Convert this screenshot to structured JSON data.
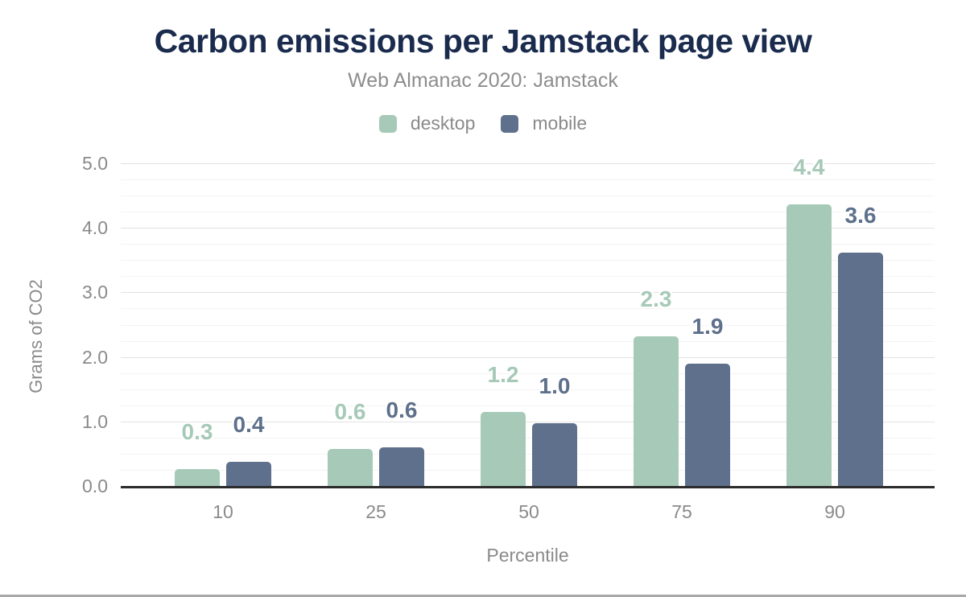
{
  "title": "Carbon emissions per Jamstack page view",
  "subtitle": "Web Almanac 2020: Jamstack",
  "chart_data": {
    "type": "bar",
    "categories": [
      "10",
      "25",
      "50",
      "75",
      "90"
    ],
    "series": [
      {
        "name": "desktop",
        "color": "#a6c9b8",
        "values": [
          0.26,
          0.57,
          1.15,
          2.32,
          4.37
        ],
        "labels": [
          "0.3",
          "0.6",
          "1.2",
          "2.3",
          "4.4"
        ]
      },
      {
        "name": "mobile",
        "color": "#5e708b",
        "values": [
          0.38,
          0.6,
          0.97,
          1.9,
          3.62
        ],
        "labels": [
          "0.4",
          "0.6",
          "1.0",
          "1.9",
          "3.6"
        ]
      }
    ],
    "title": "Carbon emissions per Jamstack page view",
    "subtitle": "Web Almanac 2020: Jamstack",
    "xlabel": "Percentile",
    "ylabel": "Grams of CO2",
    "ylim": [
      0,
      5
    ],
    "yticks": [
      0,
      1,
      2,
      3,
      4,
      5
    ],
    "ytick_labels": [
      "0.0",
      "1.0",
      "2.0",
      "3.0",
      "4.0",
      "5.0"
    ],
    "minor_grid_step": 0.25,
    "grid": true,
    "legend_position": "top",
    "data_labels_shown": true
  },
  "colors": {
    "title_text": "#1a2b4d",
    "subtitle_text": "#8d8d8d",
    "axis_text": "#8a8a8a",
    "axis_line": "#2b2b2b",
    "grid_major": "#e2e2e2",
    "grid_minor": "#f3f3f3",
    "background": "#ffffff",
    "bottom_border": "#a8a8a8",
    "desktop_series": "#a6c9b8",
    "mobile_series": "#5e708b"
  }
}
